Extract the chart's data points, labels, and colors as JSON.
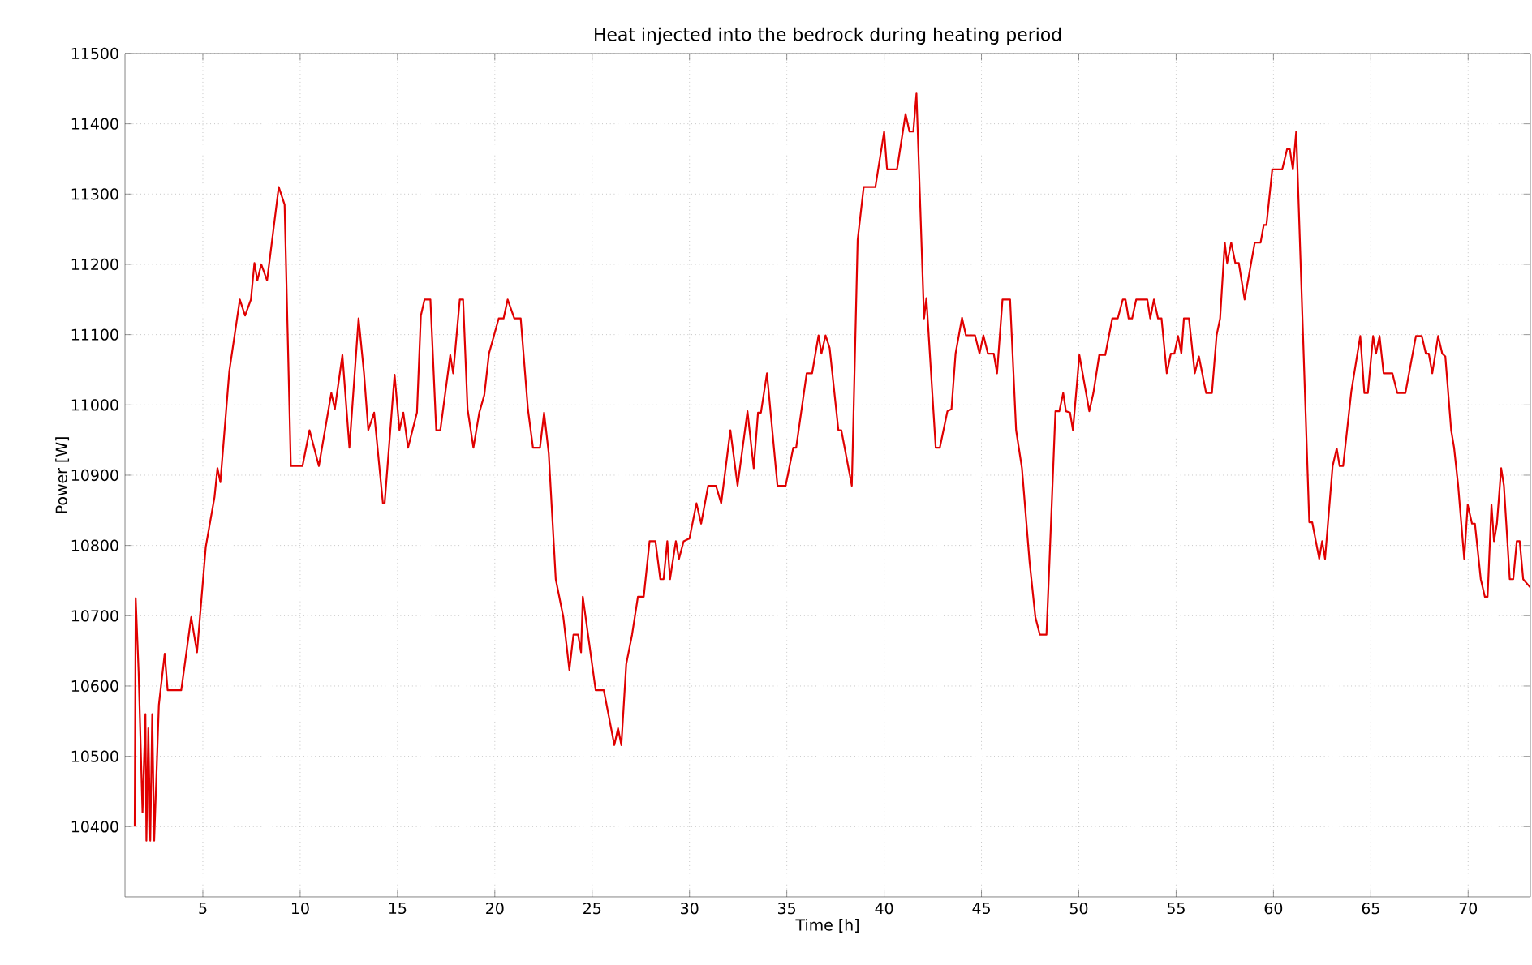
{
  "chart_data": {
    "type": "line",
    "title": "Heat injected into the bedrock during heating period",
    "xlabel": "Time [h]",
    "ylabel": "Power [W]",
    "xlim": [
      1,
      73.2
    ],
    "ylim": [
      10300,
      11500
    ],
    "xticks": [
      5,
      10,
      15,
      20,
      25,
      30,
      35,
      40,
      45,
      50,
      55,
      60,
      65,
      70
    ],
    "yticks": [
      10400,
      10500,
      10600,
      10700,
      10800,
      10900,
      11000,
      11100,
      11200,
      11300,
      11400,
      11500
    ],
    "grid": true,
    "x": [
      1.5,
      1.55,
      1.6,
      1.7,
      1.8,
      1.9,
      1.95,
      2.05,
      2.1,
      2.2,
      2.3,
      2.4,
      2.5,
      2.6,
      2.74,
      3.04,
      3.19,
      3.89,
      4.4,
      4.7,
      5.15,
      5.6,
      5.75,
      5.9,
      6.36,
      6.9,
      7.17,
      7.47,
      7.65,
      7.8,
      8.0,
      8.3,
      8.9,
      9.2,
      9.52,
      10.12,
      10.48,
      10.96,
      11.6,
      11.78,
      12.17,
      12.53,
      13.0,
      13.28,
      13.5,
      13.8,
      14.25,
      14.34,
      14.85,
      15.1,
      15.3,
      15.54,
      16.0,
      16.2,
      16.39,
      16.69,
      16.99,
      17.2,
      17.71,
      17.86,
      18.2,
      18.37,
      18.6,
      18.9,
      19.2,
      19.46,
      19.7,
      20.2,
      20.45,
      20.66,
      21.0,
      21.33,
      21.7,
      21.96,
      22.32,
      22.53,
      22.77,
      23.13,
      23.52,
      23.83,
      24.04,
      24.28,
      24.43,
      24.52,
      25.18,
      25.6,
      26.14,
      26.33,
      26.5,
      26.75,
      27.05,
      27.35,
      27.65,
      27.95,
      28.25,
      28.5,
      28.67,
      28.86,
      29.0,
      29.3,
      29.46,
      29.7,
      30.0,
      30.36,
      30.6,
      30.96,
      31.36,
      31.63,
      32.1,
      32.47,
      32.98,
      33.3,
      33.52,
      33.67,
      33.98,
      34.28,
      34.52,
      34.94,
      35.33,
      35.48,
      36.02,
      36.3,
      36.63,
      36.78,
      36.99,
      37.2,
      37.65,
      37.8,
      38.34,
      38.64,
      38.95,
      39.55,
      40.0,
      40.15,
      40.66,
      41.1,
      41.3,
      41.5,
      41.66,
      42.05,
      42.17,
      42.65,
      42.86,
      43.25,
      43.46,
      43.67,
      44.0,
      44.2,
      44.67,
      44.9,
      45.1,
      45.33,
      45.63,
      45.8,
      46.08,
      46.47,
      46.78,
      47.08,
      47.47,
      47.77,
      48.0,
      48.34,
      48.5,
      48.8,
      49.0,
      49.2,
      49.34,
      49.55,
      49.7,
      50.03,
      50.54,
      50.75,
      51.05,
      51.36,
      51.72,
      52.0,
      52.26,
      52.4,
      52.56,
      52.74,
      52.95,
      53.52,
      53.67,
      53.86,
      54.07,
      54.25,
      54.52,
      54.73,
      54.91,
      55.1,
      55.27,
      55.4,
      55.66,
      55.96,
      56.17,
      56.54,
      56.84,
      57.08,
      57.26,
      57.5,
      57.62,
      57.83,
      58.04,
      58.22,
      58.52,
      59.04,
      59.34,
      59.5,
      59.64,
      59.94,
      60.45,
      60.7,
      60.84,
      61.0,
      61.17,
      61.84,
      61.99,
      62.35,
      62.5,
      62.65,
      63.04,
      63.25,
      63.4,
      63.58,
      64.0,
      64.46,
      64.67,
      64.85,
      65.12,
      65.27,
      65.45,
      65.66,
      66.11,
      66.36,
      66.78,
      67.32,
      67.62,
      67.83,
      67.98,
      68.16,
      68.46,
      68.67,
      68.83,
      69.13,
      69.28,
      69.49,
      69.8,
      69.98,
      70.2,
      70.35,
      70.65,
      70.86,
      71.0,
      71.2,
      71.33,
      71.48,
      71.7,
      71.84,
      72.14,
      72.32,
      72.5,
      72.65,
      72.83,
      73.2
    ],
    "series": [
      {
        "color": "#e00000",
        "values": [
          10400,
          10725,
          null,
          10620,
          null,
          10420,
          null,
          10560,
          10380,
          10540,
          10380,
          10560,
          10380,
          10460,
          10573,
          10646,
          10594,
          10594,
          10698,
          10648,
          10798,
          10869,
          10910,
          10890,
          11048,
          11150,
          11127,
          11150,
          11202,
          11177,
          11200,
          11177,
          11310,
          11285,
          10913,
          10913,
          10964,
          10913,
          11017,
          10994,
          11071,
          10939,
          11123,
          11045,
          10964,
          10989,
          10860,
          10860,
          11043,
          10964,
          10989,
          10939,
          10989,
          11127,
          11150,
          11150,
          10964,
          10964,
          11071,
          11045,
          11150,
          11150,
          10994,
          10939,
          10989,
          11014,
          11073,
          11123,
          11123,
          11150,
          11123,
          11123,
          10994,
          10939,
          10939,
          10989,
          10931,
          10752,
          10698,
          10623,
          10673,
          10673,
          10648,
          10727,
          10594,
          10594,
          10516,
          10540,
          10516,
          10631,
          10673,
          10727,
          10727,
          10806,
          10806,
          10752,
          10752,
          10806,
          10752,
          10806,
          10781,
          10806,
          10810,
          10860,
          10831,
          10885,
          10885,
          10860,
          10964,
          10885,
          10991,
          10910,
          10989,
          10989,
          11045,
          10956,
          10885,
          10885,
          10939,
          10939,
          11045,
          11045,
          11099,
          11073,
          11099,
          11081,
          10964,
          10964,
          10885,
          11235,
          11310,
          11310,
          11389,
          11335,
          11335,
          11414,
          11389,
          11389,
          11443,
          11123,
          11152,
          10939,
          10939,
          10991,
          10994,
          11073,
          11124,
          11099,
          11099,
          11073,
          11099,
          11073,
          11073,
          11045,
          11150,
          11150,
          10964,
          10910,
          10777,
          10698,
          10673,
          10673,
          10781,
          10991,
          10991,
          11017,
          10991,
          10989,
          10964,
          11071,
          10991,
          11017,
          11071,
          11071,
          11123,
          11123,
          11150,
          11150,
          11123,
          11123,
          11150,
          11150,
          11123,
          11150,
          11123,
          11123,
          11045,
          11073,
          11073,
          11098,
          11073,
          11123,
          11123,
          11045,
          11069,
          11017,
          11017,
          11099,
          11123,
          11231,
          11202,
          11231,
          11202,
          11202,
          11150,
          11231,
          11231,
          11256,
          11256,
          11335,
          11335,
          11364,
          11364,
          11335,
          11389,
          10833,
          10833,
          10781,
          10806,
          10781,
          10913,
          10938,
          10913,
          10913,
          11019,
          11098,
          11017,
          11017,
          11098,
          11073,
          11098,
          11045,
          11045,
          11017,
          11017,
          11098,
          11098,
          11073,
          11073,
          11045,
          11098,
          11073,
          11069,
          10964,
          10939,
          10885,
          10781,
          10858,
          10831,
          10831,
          10752,
          10727,
          10727,
          10858,
          10806,
          10831,
          10910,
          10885,
          10752,
          10752,
          10806,
          10806,
          10752,
          10740
        ]
      }
    ]
  }
}
